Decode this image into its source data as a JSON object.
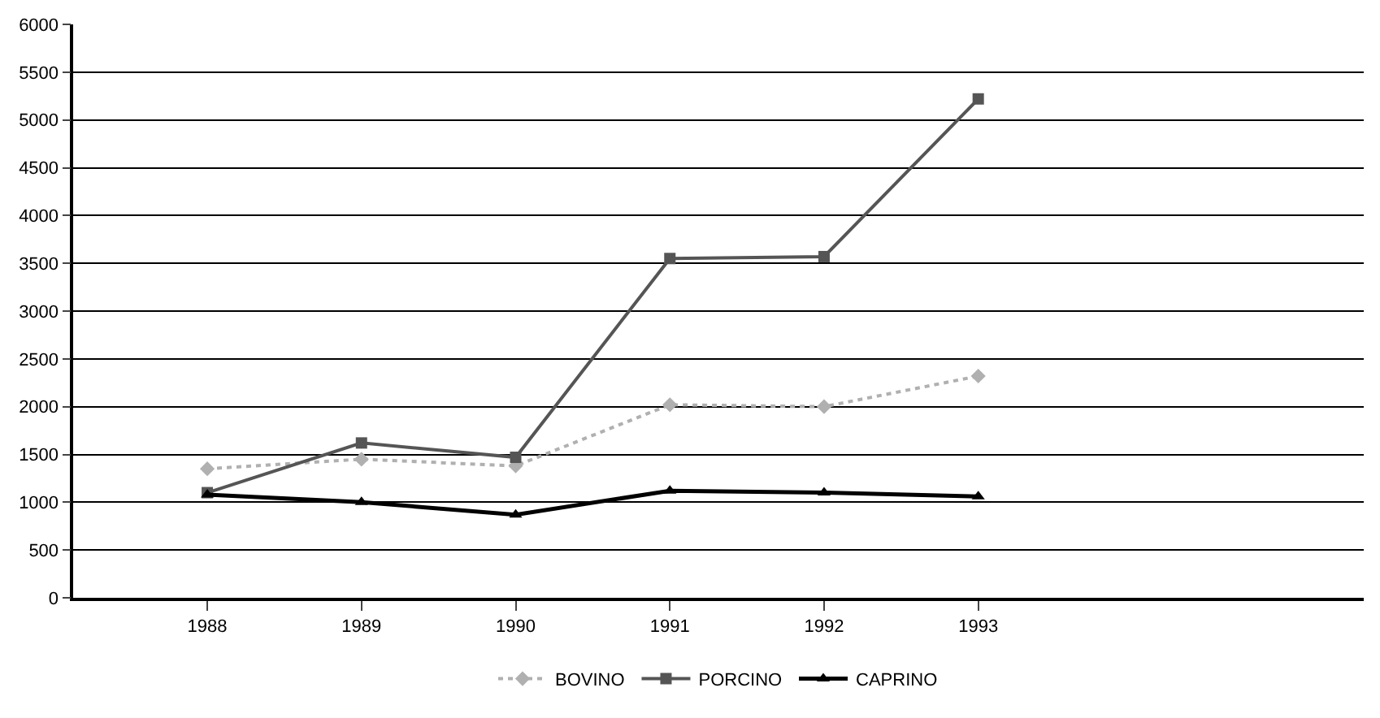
{
  "chart_data": {
    "type": "line",
    "x": [
      1988,
      1989,
      1990,
      1991,
      1992,
      1993
    ],
    "xlim": [
      1987.13,
      1995.5
    ],
    "xticks": [
      1988,
      1989,
      1990,
      1991,
      1992,
      1993
    ],
    "ylim": [
      0,
      6000
    ],
    "yticks": [
      0,
      500,
      1000,
      1500,
      2000,
      2500,
      3000,
      3500,
      4000,
      4500,
      5000,
      5500,
      6000
    ],
    "grid": "y",
    "legend": "bottom",
    "series": [
      {
        "name": "BOVINO",
        "color": "#b0b0b0",
        "marker": "diamond",
        "line_style": "dotted",
        "values": [
          1350,
          1450,
          1380,
          2020,
          2000,
          2320
        ]
      },
      {
        "name": "PORCINO",
        "color": "#555555",
        "marker": "square",
        "line_style": "solid",
        "values": [
          1100,
          1620,
          1470,
          3550,
          3570,
          5220
        ]
      },
      {
        "name": "CAPRINO",
        "color": "#000000",
        "marker": "triangle",
        "line_style": "solid",
        "values": [
          1080,
          1000,
          870,
          1120,
          1100,
          1060
        ]
      }
    ]
  }
}
